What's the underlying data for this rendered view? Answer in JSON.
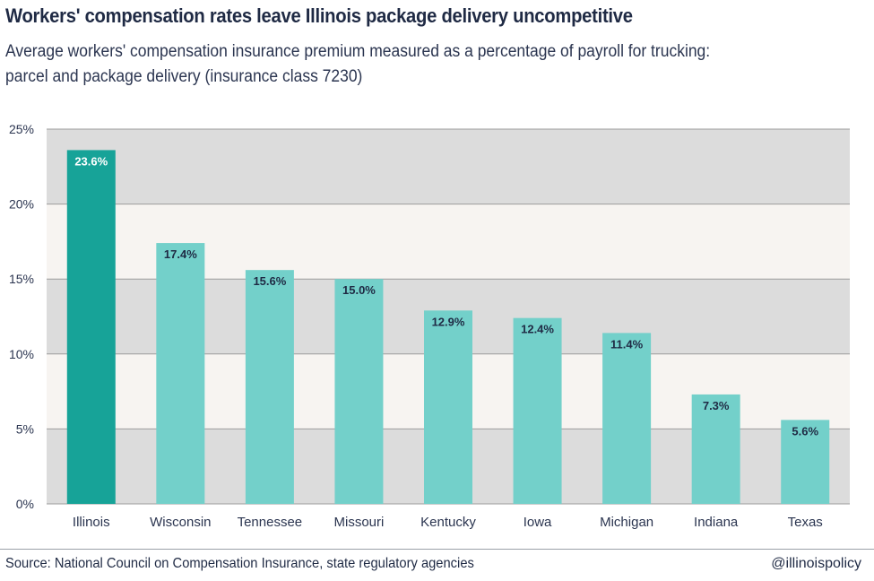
{
  "header": {
    "title": "Workers' compensation rates leave Illinois package delivery uncompetitive",
    "subtitle_line1": "Average workers' compensation insurance premium measured as a percentage of payroll for trucking:",
    "subtitle_line2": "parcel and package delivery (insurance class 7230)"
  },
  "footer": {
    "source": "Source: National Council on Compensation Insurance, state regulatory agencies",
    "handle": "@illinoispolicy"
  },
  "chart_data": {
    "type": "bar",
    "title": "Workers' compensation rates leave Illinois package delivery uncompetitive",
    "xlabel": "",
    "ylabel": "",
    "categories": [
      "Illinois",
      "Wisconsin",
      "Tennessee",
      "Missouri",
      "Kentucky",
      "Iowa",
      "Michigan",
      "Indiana",
      "Texas"
    ],
    "values": [
      23.6,
      17.4,
      15.6,
      15.0,
      12.9,
      12.4,
      11.4,
      7.3,
      5.6
    ],
    "data_labels": [
      "23.6%",
      "17.4%",
      "15.6%",
      "15.0%",
      "12.9%",
      "12.4%",
      "11.4%",
      "7.3%",
      "5.6%"
    ],
    "ylim": [
      0,
      25
    ],
    "yticks": [
      0,
      5,
      10,
      15,
      20,
      25
    ],
    "ytick_labels": [
      "0%",
      "5%",
      "10%",
      "15%",
      "20%",
      "25%"
    ],
    "highlight_category": "Illinois",
    "colors": {
      "highlight": "#17a398",
      "bar": "#73d0ca",
      "band_dark": "#dcdcdc",
      "band_light": "#f7f4f1",
      "gridline": "#9c9c9c",
      "label_on_highlight": "#ffffff",
      "label_on_bar": "#1f2a44"
    }
  }
}
